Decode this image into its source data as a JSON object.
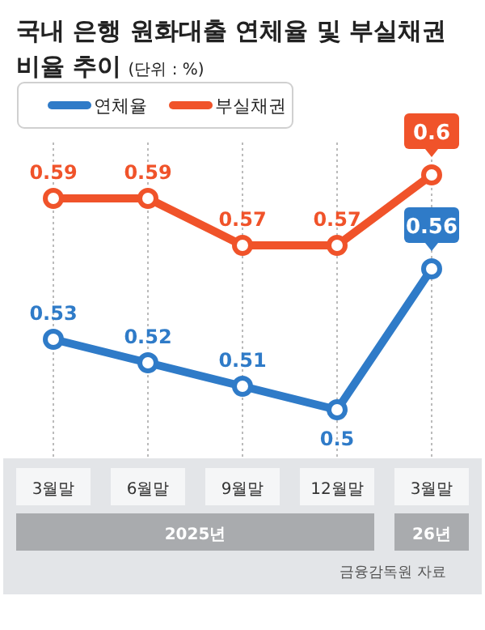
{
  "chart_data": {
    "type": "line",
    "title": "국내 은행 원화대출 연체율 및 부실채권 비율 추이",
    "subtitle": "(단위 : %)",
    "categories": [
      "3월말",
      "6월말",
      "9월말",
      "12월말",
      "3월말"
    ],
    "series": [
      {
        "name": "연체율",
        "color": "#2f7bc8",
        "values": [
          0.53,
          0.52,
          0.51,
          0.5,
          0.56
        ]
      },
      {
        "name": "부실채권",
        "color": "#f0532a",
        "values": [
          0.59,
          0.59,
          0.57,
          0.57,
          0.6
        ]
      }
    ],
    "data_labels": true,
    "marker": "circle",
    "grid": "x",
    "legend": "top left",
    "tick_labels": "x",
    "annotations": [
      "2025년",
      "26년",
      "금융감독원 자료"
    ]
  }
}
